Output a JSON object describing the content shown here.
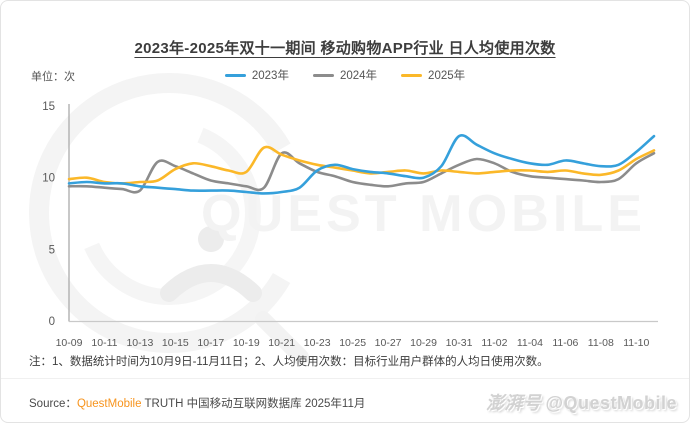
{
  "title": "2023年-2025年双十一期间 移动购物APP行业 日人均使用次数",
  "unit_label": "单位：次",
  "note": "注：1、数据统计时间为10月9日-11月11日；2、人均使用次数：目标行业用户群体的人均日使用次数。",
  "footer": {
    "source_label": "Source：",
    "brand": "QuestMobile",
    "brand_color": "#F7941E",
    "rest": " TRUTH 中国移动互联网数据库 2025年11月"
  },
  "watermark": {
    "logo_text": "QUEST MOBILE",
    "badge_cn": "澎湃号",
    "badge_en": "@QuestMobile"
  },
  "chart_data": {
    "type": "line",
    "title": "2023年-2025年双十一期间 移动购物APP行业 日人均使用次数",
    "ylabel": "次",
    "ylim": [
      0,
      15
    ],
    "y_ticks": [
      0,
      5,
      10,
      15
    ],
    "grid": false,
    "legend_position": "top",
    "x_tick_step": 2,
    "x": [
      "10-09",
      "10-10",
      "10-11",
      "10-12",
      "10-13",
      "10-14",
      "10-15",
      "10-16",
      "10-17",
      "10-18",
      "10-19",
      "10-20",
      "10-21",
      "10-22",
      "10-23",
      "10-24",
      "10-25",
      "10-26",
      "10-27",
      "10-28",
      "10-29",
      "10-30",
      "10-31",
      "11-01",
      "11-02",
      "11-03",
      "11-04",
      "11-05",
      "11-06",
      "11-07",
      "11-08",
      "11-09",
      "11-10",
      "11-11"
    ],
    "series": [
      {
        "name": "2023年",
        "color": "#35A0DB",
        "values": [
          9.6,
          9.7,
          9.6,
          9.6,
          9.4,
          9.3,
          9.2,
          9.1,
          9.1,
          9.1,
          9.0,
          8.9,
          9.0,
          9.3,
          10.5,
          10.9,
          10.6,
          10.4,
          10.3,
          10.1,
          10.0,
          10.8,
          12.9,
          12.3,
          11.7,
          11.3,
          11.0,
          10.9,
          11.2,
          11.0,
          10.8,
          10.9,
          11.8,
          12.9
        ]
      },
      {
        "name": "2024年",
        "color": "#8C8C8C",
        "values": [
          9.4,
          9.4,
          9.3,
          9.2,
          9.1,
          11.1,
          10.8,
          10.3,
          9.8,
          9.6,
          9.4,
          9.3,
          11.7,
          11.0,
          10.4,
          10.1,
          9.7,
          9.5,
          9.4,
          9.6,
          9.7,
          10.3,
          10.9,
          11.3,
          11.0,
          10.4,
          10.1,
          10.0,
          9.9,
          9.8,
          9.7,
          9.9,
          11.0,
          11.7
        ]
      },
      {
        "name": "2025年",
        "color": "#FBB829",
        "values": [
          9.9,
          10.0,
          9.7,
          9.6,
          9.7,
          9.8,
          10.6,
          11.0,
          10.8,
          10.5,
          10.4,
          12.1,
          11.6,
          11.2,
          10.9,
          10.7,
          10.5,
          10.3,
          10.4,
          10.5,
          10.3,
          10.5,
          10.4,
          10.3,
          10.4,
          10.5,
          10.5,
          10.4,
          10.5,
          10.3,
          10.2,
          10.5,
          11.3,
          11.9
        ]
      }
    ]
  }
}
